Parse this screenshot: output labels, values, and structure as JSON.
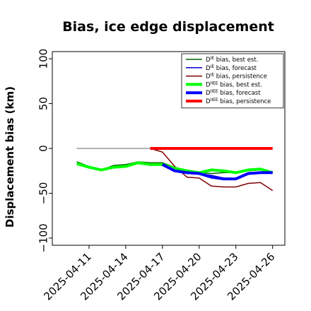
{
  "chart_data": {
    "type": "line",
    "title": "Bias, ice edge displacement",
    "xlabel": "",
    "ylabel": "Displacement bias (km)",
    "ylim": [
      -108,
      108
    ],
    "yticks": [
      100,
      50,
      0,
      -50,
      -100
    ],
    "ytick_labels": [
      "100",
      "50",
      "0",
      "−50",
      "−100"
    ],
    "xlim": [
      "2025-04-08",
      "2025-04-27"
    ],
    "xticks": [
      "2025-04-11",
      "2025-04-14",
      "2025-04-17",
      "2025-04-20",
      "2025-04-23",
      "2025-04-26"
    ],
    "highlight_tick": "2025-04-17",
    "highlight_color": "#228B22",
    "grid": false,
    "legend_position": "top-right",
    "zero_line": {
      "x": [
        "2025-04-10",
        "2025-04-16"
      ],
      "y": 0,
      "color": "#808080"
    },
    "series": [
      {
        "name": "D^IE bias, best est.",
        "name_base": "D",
        "name_sup": "IE",
        "name_rest": " bias, best est.",
        "color": "#006400",
        "width": 1.5,
        "x": [
          "2025-04-10",
          "2025-04-11",
          "2025-04-12",
          "2025-04-13",
          "2025-04-14",
          "2025-04-15",
          "2025-04-16",
          "2025-04-17",
          "2025-04-18",
          "2025-04-19",
          "2025-04-20",
          "2025-04-21",
          "2025-04-22",
          "2025-04-23",
          "2025-04-24",
          "2025-04-25",
          "2025-04-26"
        ],
        "y": [
          -15,
          -20,
          -24,
          -19,
          -18,
          -15,
          -16,
          -16,
          -21,
          -25,
          -27,
          -28,
          -27,
          -27,
          -25,
          -24,
          -26
        ]
      },
      {
        "name": "D^IE bias, forecast",
        "name_base": "D",
        "name_sup": "IE",
        "name_rest": " bias, forecast",
        "color": "#0000CD",
        "width": 1.5,
        "x": [
          "2025-04-17",
          "2025-04-18",
          "2025-04-19",
          "2025-04-20",
          "2025-04-21",
          "2025-04-22",
          "2025-04-23",
          "2025-04-24",
          "2025-04-25",
          "2025-04-26"
        ],
        "y": [
          -18,
          -24,
          -28,
          -28,
          -30,
          -33,
          -34,
          -29,
          -27,
          -27
        ]
      },
      {
        "name": "D^IE bias, persistence",
        "name_base": "D",
        "name_sup": "IE",
        "name_rest": " bias, persistence",
        "color": "#800000",
        "width": 1.5,
        "x": [
          "2025-04-16",
          "2025-04-17",
          "2025-04-18",
          "2025-04-19",
          "2025-04-20",
          "2025-04-21",
          "2025-04-22",
          "2025-04-23",
          "2025-04-24",
          "2025-04-25",
          "2025-04-26"
        ],
        "y": [
          0,
          -4,
          -20,
          -32,
          -33,
          -42,
          -43,
          -43,
          -39,
          -38,
          -47
        ]
      },
      {
        "name": "D^IIEE bias, best est.",
        "name_base": "D",
        "name_sup": "IIEE",
        "name_rest": " bias, best est.",
        "color": "#00FF00",
        "width": 4,
        "x": [
          "2025-04-10",
          "2025-04-11",
          "2025-04-12",
          "2025-04-13",
          "2025-04-14",
          "2025-04-15",
          "2025-04-16",
          "2025-04-17",
          "2025-04-18",
          "2025-04-19",
          "2025-04-20",
          "2025-04-21",
          "2025-04-22",
          "2025-04-23",
          "2025-04-24",
          "2025-04-25",
          "2025-04-26"
        ],
        "y": [
          -17,
          -21,
          -24,
          -21,
          -20,
          -16,
          -18,
          -18,
          -22,
          -25,
          -27,
          -24,
          -25,
          -27,
          -24,
          -23,
          -27
        ]
      },
      {
        "name": "D^IIEE bias, forecast",
        "name_base": "D",
        "name_sup": "IIEE",
        "name_rest": " bias, forecast",
        "color": "#0000FF",
        "width": 4,
        "x": [
          "2025-04-17",
          "2025-04-18",
          "2025-04-19",
          "2025-04-20",
          "2025-04-21",
          "2025-04-22",
          "2025-04-23",
          "2025-04-24",
          "2025-04-25",
          "2025-04-26"
        ],
        "y": [
          -18,
          -25,
          -27,
          -28,
          -32,
          -34,
          -34,
          -28,
          -27,
          -27
        ]
      },
      {
        "name": "D^IIEE bias, persistence",
        "name_base": "D",
        "name_sup": "IIEE",
        "name_rest": " bias, persistence",
        "color": "#FF0000",
        "width": 4,
        "x": [
          "2025-04-16",
          "2025-04-17",
          "2025-04-18",
          "2025-04-19",
          "2025-04-20",
          "2025-04-21",
          "2025-04-22",
          "2025-04-23",
          "2025-04-24",
          "2025-04-25",
          "2025-04-26"
        ],
        "y": [
          0,
          0,
          0,
          0,
          0,
          0,
          0,
          0,
          0,
          0,
          0
        ]
      }
    ]
  }
}
